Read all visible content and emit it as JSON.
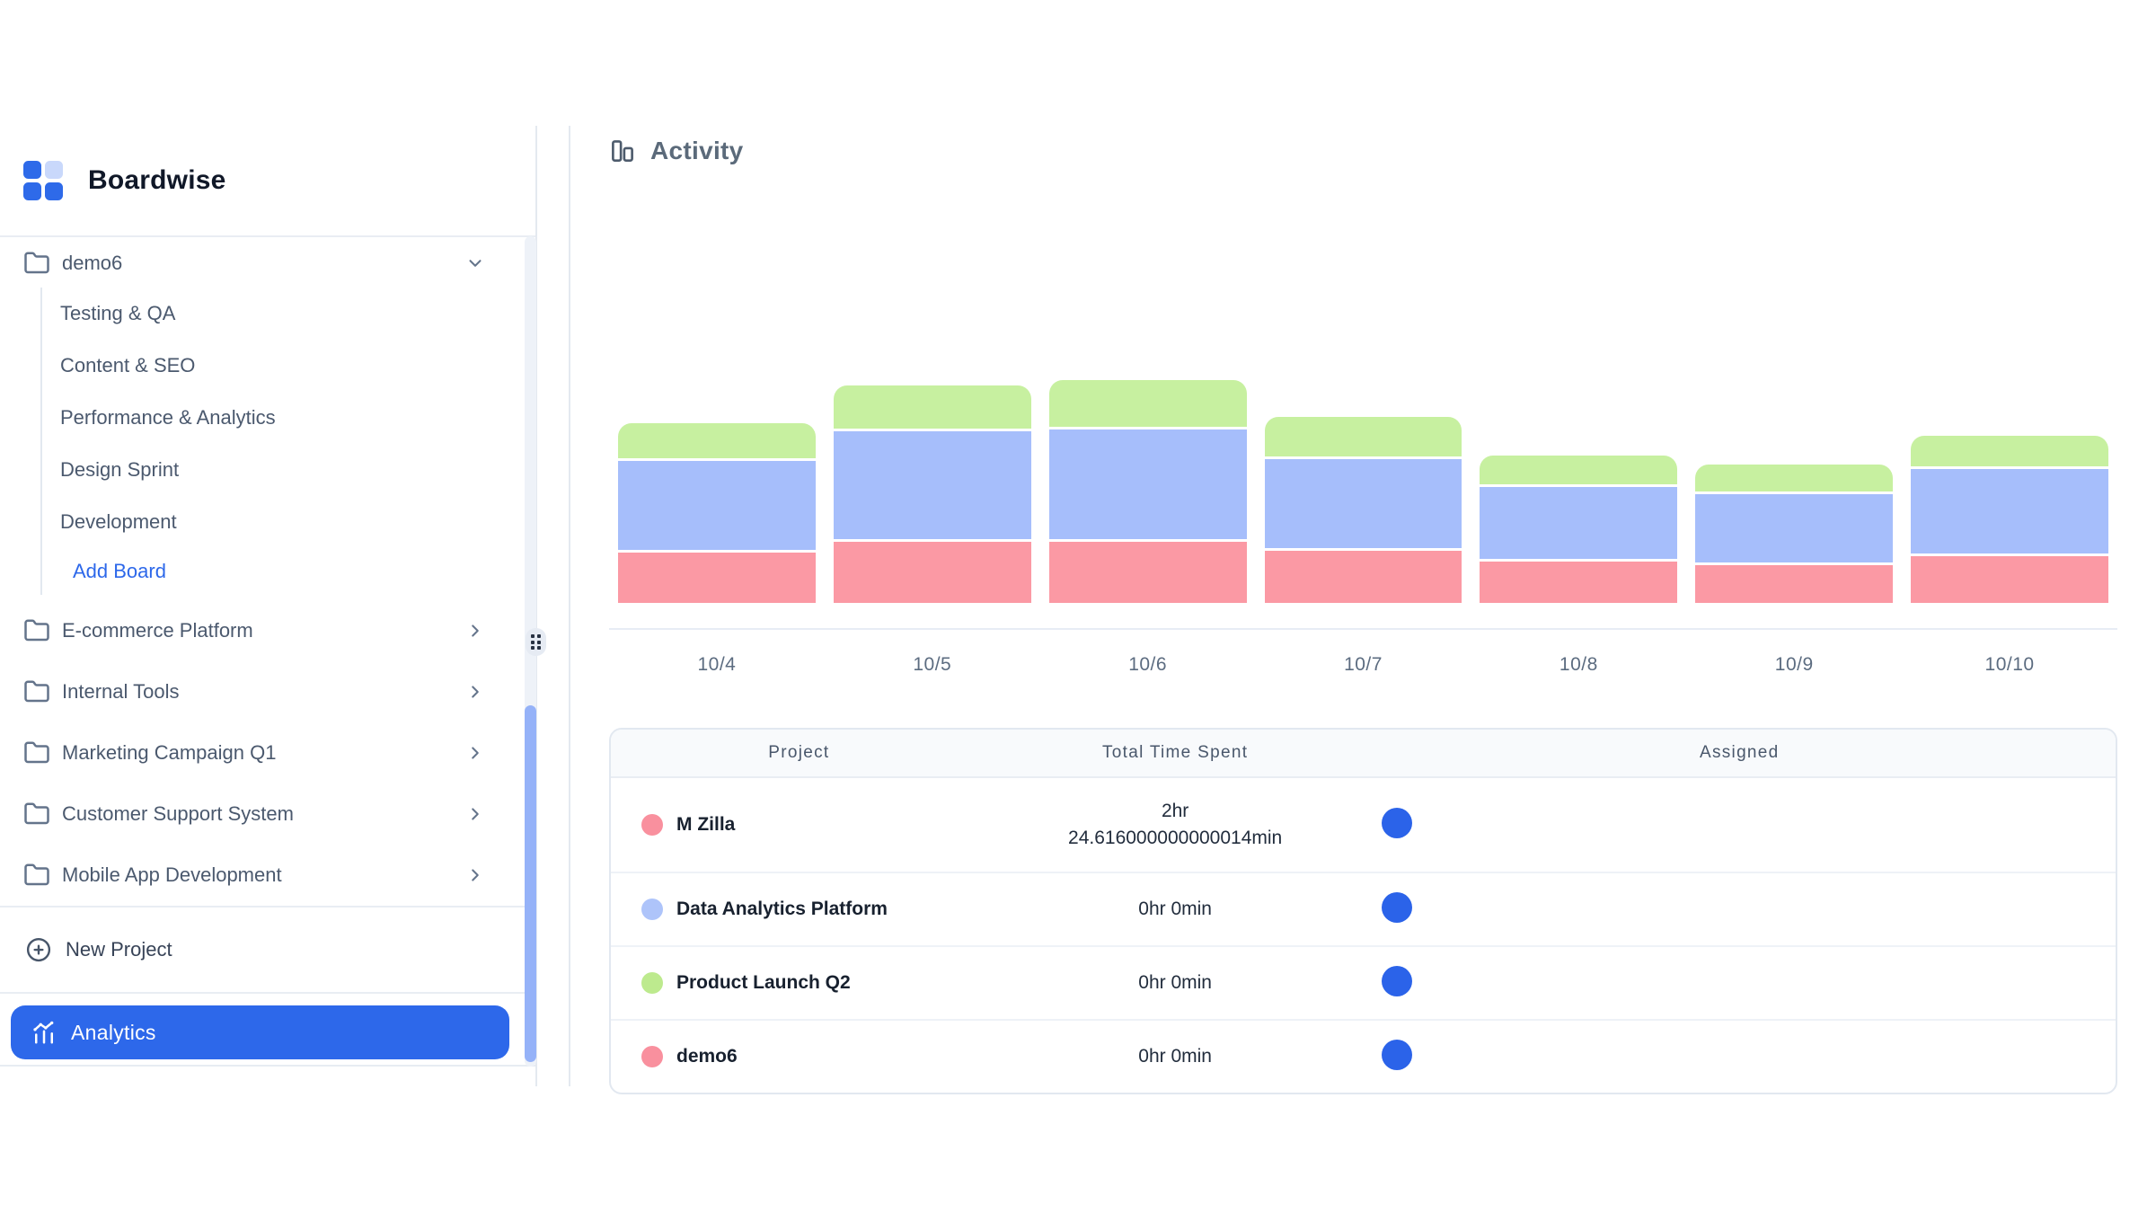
{
  "sidebar": {
    "brand": "Boardwise",
    "active_project": "demo6",
    "boards": [
      "Testing & QA",
      "Content & SEO",
      "Performance & Analytics",
      "Design Sprint",
      "Development"
    ],
    "add_board": "Add Board",
    "projects": [
      "E-commerce Platform",
      "Internal Tools",
      "Marketing Campaign Q1",
      "Customer Support System",
      "Mobile App Development"
    ],
    "new_project": "New Project",
    "analytics": "Analytics"
  },
  "main": {
    "title": "Activity"
  },
  "chart_data": {
    "type": "bar",
    "stacked": true,
    "title": "Activity",
    "categories": [
      "10/4",
      "10/5",
      "10/6",
      "10/7",
      "10/8",
      "10/9",
      "10/10"
    ],
    "series": [
      {
        "name": "Product Launch Q2",
        "color": "#c7f0a0",
        "values": [
          39,
          48,
          52,
          44,
          32,
          30,
          34
        ]
      },
      {
        "name": "Data Analytics Platform",
        "color": "#a6befb",
        "values": [
          99,
          120,
          122,
          99,
          80,
          76,
          94
        ]
      },
      {
        "name": "M Zilla",
        "color": "#fb99a4",
        "values": [
          56,
          68,
          68,
          58,
          46,
          42,
          52
        ]
      }
    ],
    "series_order": "listed top-to-bottom within each stacked bar",
    "value_units": "estimated relative units (no y-axis shown; values proportional to segment heights)",
    "xlabel": "",
    "ylabel": "",
    "layout": {
      "y_axis_visible": false,
      "grid": false,
      "legend": "none"
    }
  },
  "table": {
    "headers": [
      "Project",
      "Total Time Spent",
      "Assigned"
    ],
    "rows": [
      {
        "project": "M Zilla",
        "dot_color": "#f9909e",
        "time_lines": [
          "2hr",
          "24.616000000000014min"
        ],
        "assigned_avatar_color": "#2b63e9"
      },
      {
        "project": "Data Analytics Platform",
        "dot_color": "#aec4fa",
        "time_lines": [
          "0hr 0min"
        ],
        "assigned_avatar_color": "#2b63e9"
      },
      {
        "project": "Product Launch Q2",
        "dot_color": "#bdea8e",
        "time_lines": [
          "0hr 0min"
        ],
        "assigned_avatar_color": "#2b63e9"
      },
      {
        "project": "demo6",
        "dot_color": "#f9909e",
        "time_lines": [
          "0hr 0min"
        ],
        "assigned_avatar_color": "#2b63e9"
      }
    ]
  },
  "icons": {
    "logo": "grid-2x2-logo",
    "project_item": "folder-icon",
    "expanded": "chevron-down-icon",
    "collapsed": "chevron-right-icon",
    "new_project": "plus-circle-icon",
    "analytics": "combined-chart-icon",
    "activity": "bar-chart-icon",
    "resize": "grip-dots-handle"
  },
  "colors": {
    "accent_blue": "#2d68ea",
    "avatar_blue": "#2b63e9",
    "logo_blue": "#2e6ae9",
    "logo_light_blue": "#c9d8fb",
    "sidebar_border": "#e4e9f0",
    "scroll_thumb": "#95b2f8",
    "bar_green": "#c7f0a0",
    "bar_blue": "#a6befb",
    "bar_pink": "#fb99a4"
  }
}
